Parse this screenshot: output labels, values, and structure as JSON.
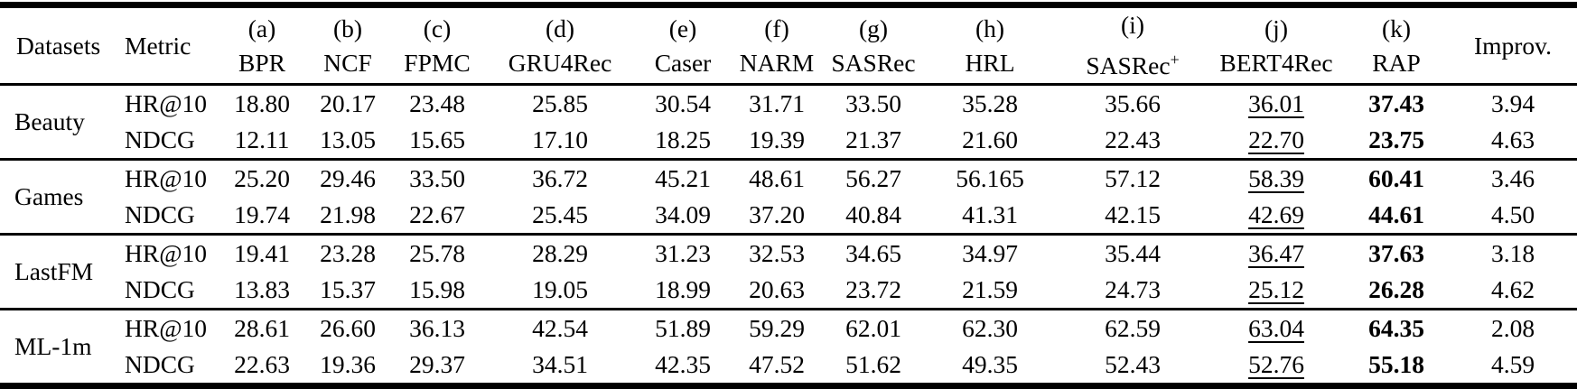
{
  "table": {
    "header": {
      "dataset_label": "Datasets",
      "metric_label": "Metric",
      "improv_label": "Improv.",
      "methods": [
        {
          "tag": "(a)",
          "name": "BPR",
          "sup": ""
        },
        {
          "tag": "(b)",
          "name": "NCF",
          "sup": ""
        },
        {
          "tag": "(c)",
          "name": "FPMC",
          "sup": ""
        },
        {
          "tag": "(d)",
          "name": "GRU4Rec",
          "sup": ""
        },
        {
          "tag": "(e)",
          "name": "Caser",
          "sup": ""
        },
        {
          "tag": "(f)",
          "name": "NARM",
          "sup": ""
        },
        {
          "tag": "(g)",
          "name": "SASRec",
          "sup": ""
        },
        {
          "tag": "(h)",
          "name": "HRL",
          "sup": ""
        },
        {
          "tag": "(i)",
          "name": "SASRec",
          "sup": "+"
        },
        {
          "tag": "(j)",
          "name": "BERT4Rec",
          "sup": ""
        },
        {
          "tag": "(k)",
          "name": "RAP",
          "sup": ""
        }
      ]
    },
    "emphasis": {
      "underlined_method_index": 9,
      "bold_method_index": 10
    },
    "groups": [
      {
        "dataset": "Beauty",
        "rows": [
          {
            "metric": "HR@10",
            "values": [
              "18.80",
              "20.17",
              "23.48",
              "25.85",
              "30.54",
              "31.71",
              "33.50",
              "35.28",
              "35.66",
              "36.01",
              "37.43"
            ],
            "improv": "3.94"
          },
          {
            "metric": "NDCG",
            "values": [
              "12.11",
              "13.05",
              "15.65",
              "17.10",
              "18.25",
              "19.39",
              "21.37",
              "21.60",
              "22.43",
              "22.70",
              "23.75"
            ],
            "improv": "4.63"
          }
        ]
      },
      {
        "dataset": "Games",
        "rows": [
          {
            "metric": "HR@10",
            "values": [
              "25.20",
              "29.46",
              "33.50",
              "36.72",
              "45.21",
              "48.61",
              "56.27",
              "56.165",
              "57.12",
              "58.39",
              "60.41"
            ],
            "improv": "3.46"
          },
          {
            "metric": "NDCG",
            "values": [
              "19.74",
              "21.98",
              "22.67",
              "25.45",
              "34.09",
              "37.20",
              "40.84",
              "41.31",
              "42.15",
              "42.69",
              "44.61"
            ],
            "improv": "4.50"
          }
        ]
      },
      {
        "dataset": "LastFM",
        "rows": [
          {
            "metric": "HR@10",
            "values": [
              "19.41",
              "23.28",
              "25.78",
              "28.29",
              "31.23",
              "32.53",
              "34.65",
              "34.97",
              "35.44",
              "36.47",
              "37.63"
            ],
            "improv": "3.18"
          },
          {
            "metric": "NDCG",
            "values": [
              "13.83",
              "15.37",
              "15.98",
              "19.05",
              "18.99",
              "20.63",
              "23.72",
              "21.59",
              "24.73",
              "25.12",
              "26.28"
            ],
            "improv": "4.62"
          }
        ]
      },
      {
        "dataset": "ML-1m",
        "rows": [
          {
            "metric": "HR@10",
            "values": [
              "28.61",
              "26.60",
              "36.13",
              "42.54",
              "51.89",
              "59.29",
              "62.01",
              "62.30",
              "62.59",
              "63.04",
              "64.35"
            ],
            "improv": "2.08"
          },
          {
            "metric": "NDCG",
            "values": [
              "22.63",
              "19.36",
              "29.37",
              "34.51",
              "42.35",
              "47.52",
              "51.62",
              "49.35",
              "52.43",
              "52.76",
              "55.18"
            ],
            "improv": "4.59"
          }
        ]
      }
    ],
    "colors": {
      "text": "#000000",
      "background": "#ffffff",
      "rule": "#000000"
    }
  }
}
